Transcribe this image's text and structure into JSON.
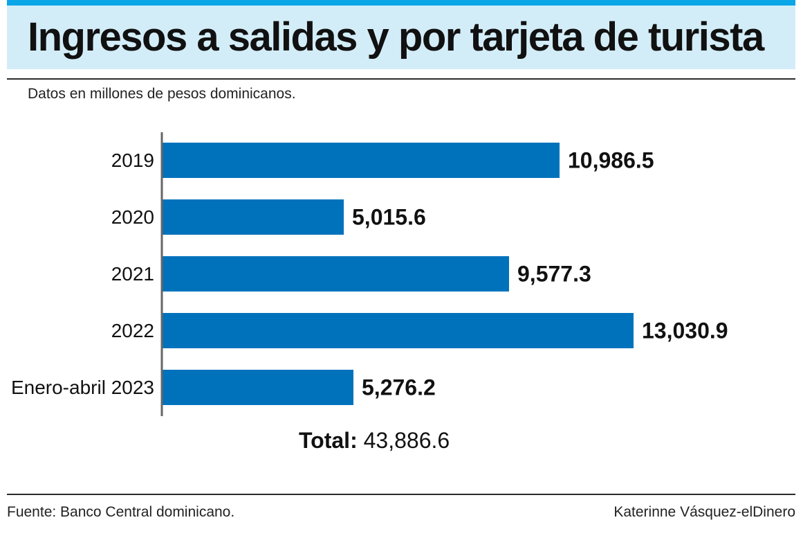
{
  "header": {
    "title": "Ingresos a salidas y por tarjeta de turista",
    "subtitle": "Datos en millones de pesos dominicanos."
  },
  "chart_data": {
    "type": "bar",
    "orientation": "horizontal",
    "title": "Ingresos a salidas y por tarjeta de turista",
    "unit": "millones de pesos dominicanos",
    "categories": [
      "2019",
      "2020",
      "2021",
      "2022",
      "Enero-abril 2023"
    ],
    "values": [
      10986.5,
      5015.6,
      9577.3,
      13030.9,
      5276.2
    ],
    "value_labels": [
      "10,986.5",
      "5,015.6",
      "9,577.3",
      "13,030.9",
      "5,276.2"
    ],
    "xlim": [
      0,
      13030.9
    ],
    "grid": false,
    "bar_color": "#0072bc",
    "axis_color": "#666666"
  },
  "summary": {
    "total_label": "Total:",
    "total_value": "43,886.6"
  },
  "footer": {
    "source": "Fuente: Banco Central dominicano.",
    "credit": "Katerinne Vásquez-elDinero"
  }
}
